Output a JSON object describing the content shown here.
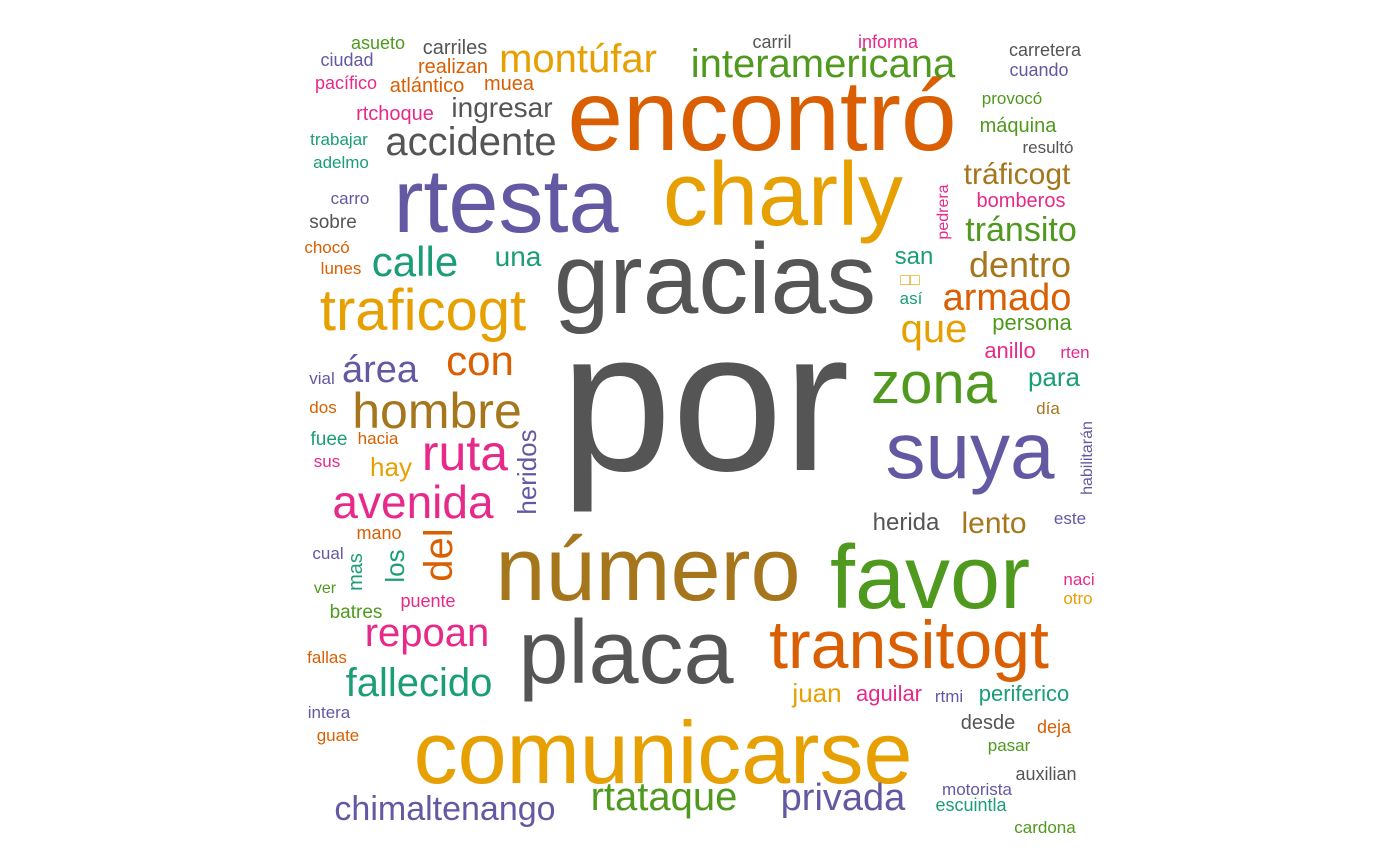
{
  "palette": {
    "teal": "#1b9e77",
    "orange": "#d95f02",
    "purple": "#6359a3",
    "magenta": "#e7298a",
    "green": "#4f9a1e",
    "gold": "#e6a002",
    "brown": "#a6761d",
    "gray": "#555555"
  },
  "words": [
    {
      "text": "por",
      "color": "gray"
    },
    {
      "text": "gracias",
      "color": "gray"
    },
    {
      "text": "encontró",
      "color": "orange"
    },
    {
      "text": "charly",
      "color": "gold"
    },
    {
      "text": "rtesta",
      "color": "purple"
    },
    {
      "text": "número",
      "color": "brown"
    },
    {
      "text": "favor",
      "color": "green"
    },
    {
      "text": "placa",
      "color": "gray"
    },
    {
      "text": "comunicarse",
      "color": "gold"
    },
    {
      "text": "suya",
      "color": "purple"
    },
    {
      "text": "transitogt",
      "color": "orange"
    },
    {
      "text": "zona",
      "color": "green"
    },
    {
      "text": "traficogt",
      "color": "gold"
    },
    {
      "text": "hombre",
      "color": "brown"
    },
    {
      "text": "avenida",
      "color": "magenta"
    },
    {
      "text": "ruta",
      "color": "magenta"
    },
    {
      "text": "interamericana",
      "color": "green"
    },
    {
      "text": "montúfar",
      "color": "gold"
    },
    {
      "text": "accidente",
      "color": "gray"
    },
    {
      "text": "calle",
      "color": "teal"
    },
    {
      "text": "con",
      "color": "orange"
    },
    {
      "text": "fallecido",
      "color": "teal"
    },
    {
      "text": "repoan",
      "color": "magenta"
    },
    {
      "text": "rtataque",
      "color": "green"
    },
    {
      "text": "privada",
      "color": "purple"
    },
    {
      "text": "chimaltenango",
      "color": "purple"
    },
    {
      "text": "área",
      "color": "purple"
    },
    {
      "text": "del",
      "color": "orange"
    },
    {
      "text": "armado",
      "color": "orange"
    },
    {
      "text": "dentro",
      "color": "brown"
    },
    {
      "text": "que",
      "color": "gold"
    },
    {
      "text": "tránsito",
      "color": "green"
    },
    {
      "text": "tráficogt",
      "color": "brown"
    },
    {
      "text": "lento",
      "color": "brown"
    },
    {
      "text": "ingresar",
      "color": "gray"
    },
    {
      "text": "una",
      "color": "teal"
    },
    {
      "text": "hay",
      "color": "gold"
    },
    {
      "text": "heridos",
      "color": "purple"
    },
    {
      "text": "los",
      "color": "teal"
    },
    {
      "text": "para",
      "color": "teal"
    },
    {
      "text": "herida",
      "color": "gray"
    },
    {
      "text": "juan",
      "color": "gold"
    },
    {
      "text": "periferico",
      "color": "teal"
    },
    {
      "text": "persona",
      "color": "green"
    },
    {
      "text": "anillo",
      "color": "magenta"
    },
    {
      "text": "san",
      "color": "teal"
    },
    {
      "text": "aguilar",
      "color": "magenta"
    },
    {
      "text": "bomberos",
      "color": "magenta"
    },
    {
      "text": "máquina",
      "color": "green"
    },
    {
      "text": "carriles",
      "color": "gray"
    },
    {
      "text": "realizan",
      "color": "orange"
    },
    {
      "text": "atlántico",
      "color": "orange"
    },
    {
      "text": "muea",
      "color": "orange"
    },
    {
      "text": "rtchoque",
      "color": "magenta"
    },
    {
      "text": "carretera",
      "color": "gray"
    },
    {
      "text": "cuando",
      "color": "purple"
    },
    {
      "text": "provocó",
      "color": "green"
    },
    {
      "text": "resultó",
      "color": "gray"
    },
    {
      "text": "carril",
      "color": "gray"
    },
    {
      "text": "informa",
      "color": "magenta"
    },
    {
      "text": "asueto",
      "color": "green"
    },
    {
      "text": "ciudad",
      "color": "purple"
    },
    {
      "text": "pacífico",
      "color": "magenta"
    },
    {
      "text": "trabajar",
      "color": "teal"
    },
    {
      "text": "adelmo",
      "color": "teal"
    },
    {
      "text": "carro",
      "color": "purple"
    },
    {
      "text": "sobre",
      "color": "gray"
    },
    {
      "text": "chocó",
      "color": "orange"
    },
    {
      "text": "lunes",
      "color": "orange"
    },
    {
      "text": "vial",
      "color": "purple"
    },
    {
      "text": "dos",
      "color": "orange"
    },
    {
      "text": "fuee",
      "color": "teal"
    },
    {
      "text": "hacia",
      "color": "orange"
    },
    {
      "text": "sus",
      "color": "magenta"
    },
    {
      "text": "mano",
      "color": "orange"
    },
    {
      "text": "cual",
      "color": "purple"
    },
    {
      "text": "mas",
      "color": "teal"
    },
    {
      "text": "ver",
      "color": "green"
    },
    {
      "text": "batres",
      "color": "green"
    },
    {
      "text": "puente",
      "color": "magenta"
    },
    {
      "text": "fallas",
      "color": "orange"
    },
    {
      "text": "intera",
      "color": "purple"
    },
    {
      "text": "guate",
      "color": "orange"
    },
    {
      "text": "así",
      "color": "teal"
    },
    {
      "text": "pedrera",
      "color": "magenta"
    },
    {
      "text": "rten",
      "color": "magenta"
    },
    {
      "text": "día",
      "color": "brown"
    },
    {
      "text": "habilitarán",
      "color": "purple"
    },
    {
      "text": "este",
      "color": "purple"
    },
    {
      "text": "naci",
      "color": "magenta"
    },
    {
      "text": "otro",
      "color": "gold"
    },
    {
      "text": "rtmi",
      "color": "purple"
    },
    {
      "text": "desde",
      "color": "gray"
    },
    {
      "text": "deja",
      "color": "orange"
    },
    {
      "text": "pasar",
      "color": "green"
    },
    {
      "text": "auxilian",
      "color": "gray"
    },
    {
      "text": "motorista",
      "color": "purple"
    },
    {
      "text": "escuintla",
      "color": "teal"
    },
    {
      "text": "cardona",
      "color": "green"
    },
    {
      "text": "□□",
      "color": "gold"
    }
  ]
}
